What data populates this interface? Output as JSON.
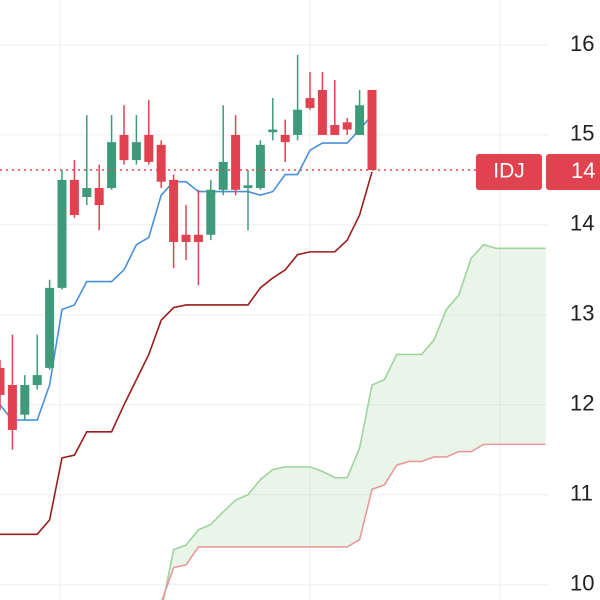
{
  "chart_data": {
    "type": "candlestick",
    "ylim": [
      9.83,
      16.5
    ],
    "yticks": [
      16,
      15,
      14,
      13,
      12,
      11,
      10
    ],
    "ytick_labels": [
      "16",
      "15",
      "14",
      "13",
      "12",
      "11",
      "10"
    ],
    "grid": true,
    "up_color": "#3f9a7c",
    "down_color": "#e0434f",
    "symbol_label": "IDJ",
    "price_label": "14",
    "open": [
      12.41,
      12.22,
      11.89,
      12.22,
      12.41,
      13.3,
      14.5,
      14.31,
      14.41,
      14.41,
      15.0,
      14.72,
      15.0,
      14.89,
      14.5,
      13.89,
      13.89,
      13.89,
      14.39,
      15.0,
      14.41,
      14.41,
      15.03,
      15.0,
      15.0,
      15.41,
      15.5,
      15.11,
      15.14,
      15.0,
      15.5
    ],
    "high": [
      12.5,
      12.78,
      12.33,
      12.78,
      13.39,
      14.61,
      14.72,
      15.22,
      14.67,
      15.22,
      15.33,
      15.22,
      15.39,
      14.94,
      14.56,
      14.22,
      14.39,
      14.5,
      15.33,
      15.22,
      14.61,
      14.94,
      15.41,
      15.17,
      15.89,
      15.7,
      15.7,
      15.61,
      15.19,
      15.5,
      15.5
    ],
    "low": [
      11.94,
      11.5,
      11.83,
      12.17,
      12.39,
      13.28,
      14.08,
      14.22,
      13.94,
      14.39,
      14.67,
      14.67,
      14.67,
      14.41,
      13.52,
      13.61,
      13.33,
      13.83,
      14.33,
      14.33,
      13.94,
      14.39,
      14.94,
      14.7,
      14.94,
      15.28,
      15.0,
      15.0,
      15.0,
      15.0,
      14.61
    ],
    "close": [
      12.11,
      11.72,
      12.22,
      12.33,
      13.3,
      14.5,
      14.11,
      14.41,
      14.22,
      14.92,
      14.72,
      14.92,
      14.7,
      14.48,
      13.81,
      13.81,
      13.81,
      14.39,
      14.7,
      14.39,
      14.44,
      14.89,
      15.06,
      14.92,
      15.28,
      15.3,
      15.0,
      15.0,
      15.06,
      15.33,
      14.61
    ],
    "lines": [
      {
        "color": "#4a90d9",
        "values": [
          12.0,
          11.83,
          11.83,
          11.83,
          12.22,
          13.06,
          13.11,
          13.37,
          13.37,
          13.37,
          13.5,
          13.78,
          13.86,
          14.33,
          14.48,
          14.48,
          14.37,
          14.37,
          14.37,
          14.37,
          14.37,
          14.33,
          14.37,
          14.56,
          14.56,
          14.83,
          14.91,
          14.91,
          14.91,
          15.06,
          15.22
        ]
      },
      {
        "color": "#9c1c1c",
        "values": [
          10.56,
          10.56,
          10.56,
          10.56,
          10.72,
          11.41,
          11.44,
          11.7,
          11.7,
          11.7,
          12.0,
          12.28,
          12.56,
          12.94,
          13.08,
          13.11,
          13.11,
          13.11,
          13.11,
          13.11,
          13.11,
          13.3,
          13.41,
          13.5,
          13.67,
          13.7,
          13.7,
          13.7,
          13.83,
          14.11,
          14.59
        ]
      }
    ],
    "span_a": {
      "color": "#9fd39f",
      "values": [
        null,
        null,
        null,
        null,
        null,
        null,
        null,
        null,
        null,
        null,
        null,
        null,
        null,
        9.7,
        10.39,
        10.44,
        10.61,
        10.67,
        10.81,
        10.94,
        11.0,
        11.17,
        11.28,
        11.31,
        11.31,
        11.31,
        11.26,
        11.19,
        11.19,
        11.52,
        12.22,
        12.28,
        12.56,
        12.56,
        12.56,
        12.72,
        13.06,
        13.22,
        13.63,
        13.78,
        13.74,
        13.74,
        13.74,
        13.74,
        13.74
      ]
    },
    "span_b": {
      "color": "#e89a9a",
      "values": [
        null,
        null,
        null,
        null,
        null,
        null,
        null,
        null,
        null,
        null,
        null,
        null,
        null,
        9.8,
        10.19,
        10.22,
        10.42,
        10.42,
        10.42,
        10.42,
        10.42,
        10.42,
        10.42,
        10.42,
        10.42,
        10.42,
        10.42,
        10.42,
        10.42,
        10.5,
        11.06,
        11.11,
        11.33,
        11.37,
        11.37,
        11.42,
        11.42,
        11.48,
        11.48,
        11.56,
        11.56,
        11.56,
        11.56,
        11.56,
        11.56
      ]
    }
  }
}
